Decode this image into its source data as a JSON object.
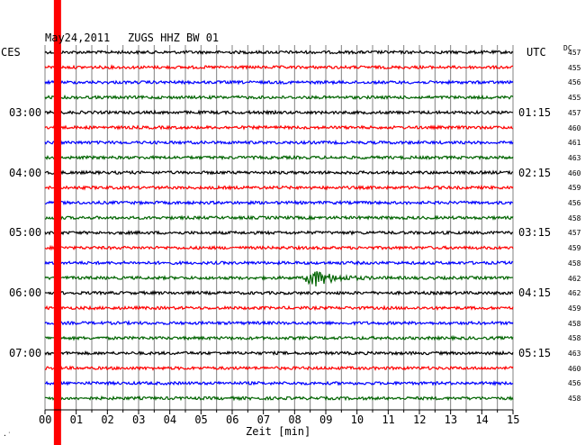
{
  "header": {
    "date": "May24,2011",
    "station": "ZUGS HHZ BW 01",
    "left_tz": "CES",
    "right_tz": "UTC",
    "dc_label": "DC"
  },
  "footer": {
    "xlabel": "Zeit [min]",
    "corner_mark": "·˙"
  },
  "chart_data": {
    "type": "line",
    "title": "May24,2011   ZUGS HHZ BW 01",
    "xlabel": "Zeit [min]",
    "ylabel": "",
    "xlim": [
      0,
      15
    ],
    "x_ticks": [
      "00",
      "01",
      "02",
      "03",
      "04",
      "05",
      "06",
      "07",
      "08",
      "09",
      "10",
      "11",
      "12",
      "13",
      "14",
      "15"
    ],
    "trace_minutes": 15,
    "trace_count": 24,
    "trace_colors": [
      "#000000",
      "#ff0000",
      "#0000ff",
      "#006400"
    ],
    "left_labels": [
      {
        "trace": 4,
        "label": "03:00"
      },
      {
        "trace": 8,
        "label": "04:00"
      },
      {
        "trace": 12,
        "label": "05:00"
      },
      {
        "trace": 16,
        "label": "06:00"
      },
      {
        "trace": 20,
        "label": "07:00"
      }
    ],
    "right_labels": [
      {
        "trace": 4,
        "label": "01:15"
      },
      {
        "trace": 8,
        "label": "02:15"
      },
      {
        "trace": 12,
        "label": "03:15"
      },
      {
        "trace": 16,
        "label": "04:15"
      },
      {
        "trace": 20,
        "label": "05:15"
      }
    ],
    "dc_offsets": [
      "457",
      "455",
      "456",
      "455",
      "457",
      "460",
      "461",
      "463",
      "460",
      "459",
      "456",
      "458",
      "457",
      "459",
      "458",
      "462",
      "462",
      "459",
      "458",
      "458",
      "463",
      "460",
      "456",
      "458"
    ],
    "event": {
      "trace": 15,
      "start_min": 8.3,
      "peak_min": 8.55,
      "end_min": 11.0,
      "peak_amplitude": 1.0
    },
    "red_marker_min": 0.4,
    "grid": true,
    "colors": {
      "grid": "#808080",
      "marker": "#ff0000"
    }
  }
}
